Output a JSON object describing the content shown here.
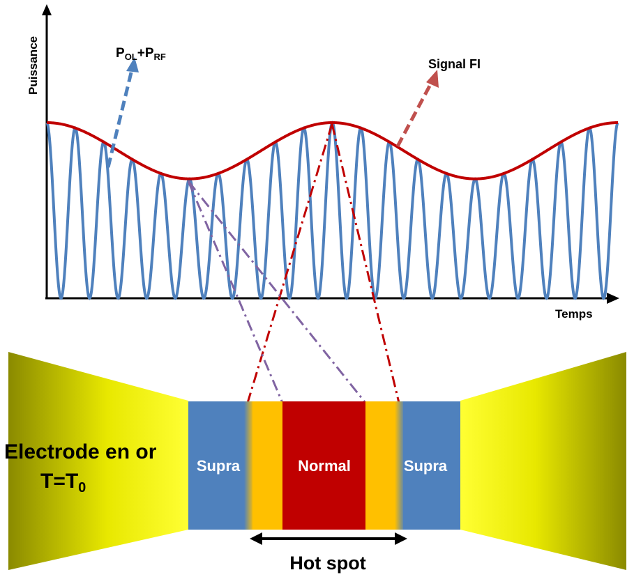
{
  "labels": {
    "y_axis": "Puissance",
    "x_axis": "Temps",
    "pol_main_1": "P",
    "pol_sub_1": "OL",
    "pol_plus": "+P",
    "pol_sub_2": "RF",
    "signal_fi": "Signal FI",
    "electrode_line1": "Electrode en or",
    "electrode_line2_main": "T=T",
    "electrode_line2_sub": "0",
    "supra_left": "Supra",
    "normal": "Normal",
    "supra_right": "Supra",
    "hot_spot": "Hot spot"
  },
  "colors": {
    "carrier_wave": "#4f81bd",
    "envelope": "#c00000",
    "electrode_gold": "#e8e800",
    "supra_blue": "#4f81bd",
    "transition_orange": "#ffc000",
    "normal_red": "#c00000",
    "pointer_blue": "#4f81bd",
    "pointer_red": "#c0504d",
    "dash_red": "#c00000",
    "dash_purple": "#8064a2",
    "axis": "#000000"
  },
  "signal": {
    "carrier_cycles": 20,
    "envelope_cycles": 2,
    "envelope_max_fraction": 1.0,
    "envelope_min_fraction": 0.68
  }
}
